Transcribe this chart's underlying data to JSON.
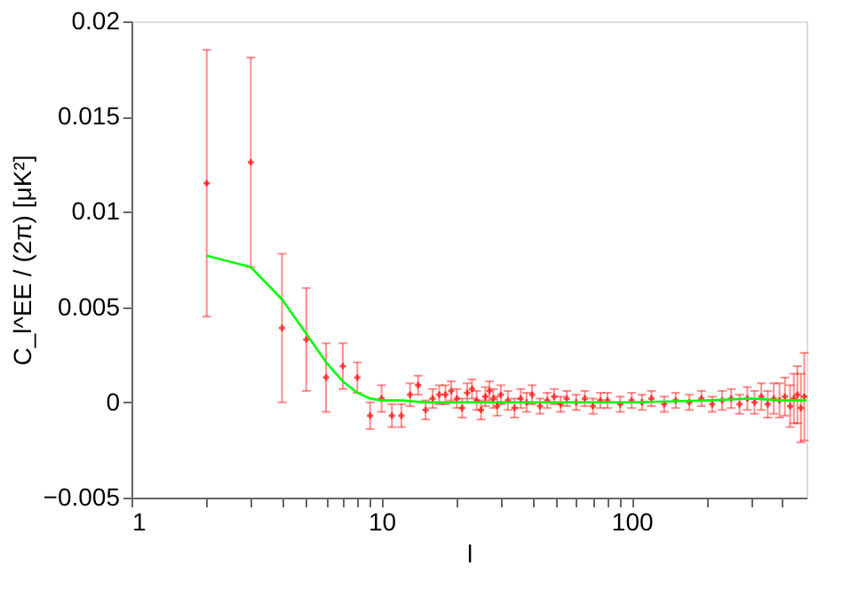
{
  "chart_data": {
    "type": "scatter",
    "xlabel": "l",
    "ylabel": "C_l^EE / (2π)  [μK²]",
    "log": "x",
    "grid": false,
    "xlim": [
      1,
      500
    ],
    "xticks": [
      1,
      {
        "value": 2,
        "label": null
      },
      {
        "value": 3,
        "label": null
      },
      {
        "value": 4,
        "label": null
      },
      {
        "value": 5,
        "label": null
      },
      {
        "value": 6,
        "label": null
      },
      {
        "value": 7,
        "label": null
      },
      {
        "value": 8,
        "label": null
      },
      {
        "value": 9,
        "label": null
      },
      10,
      {
        "value": 20,
        "label": null
      },
      {
        "value": 30,
        "label": null
      },
      {
        "value": 40,
        "label": null
      },
      {
        "value": 50,
        "label": null
      },
      {
        "value": 60,
        "label": null
      },
      {
        "value": 70,
        "label": null
      },
      {
        "value": 80,
        "label": null
      },
      {
        "value": 90,
        "label": null
      },
      100,
      {
        "value": 200,
        "label": null
      },
      {
        "value": 300,
        "label": null
      },
      {
        "value": 400,
        "label": null
      }
    ],
    "ylim": [
      -0.005,
      0.02
    ],
    "yticks": [
      -0.005,
      0,
      0.005,
      0.01,
      0.015,
      0.02
    ],
    "series": [
      {
        "marker": "cross",
        "color": "#ff0000",
        "x": [
          2,
          3,
          4,
          5,
          6,
          7,
          8,
          9,
          10,
          11,
          12,
          13,
          14,
          15,
          16,
          17,
          18,
          19,
          20,
          21,
          22,
          23,
          24,
          25,
          26,
          27,
          28,
          29,
          30,
          32,
          34,
          36,
          38,
          40,
          43,
          46,
          49,
          52,
          55,
          60,
          65,
          70,
          75,
          80,
          90,
          100,
          110,
          120,
          135,
          150,
          170,
          190,
          210,
          230,
          250,
          270,
          290,
          310,
          330,
          350,
          370,
          390,
          410,
          430,
          445,
          460,
          475,
          490
        ],
        "values": [
          0.0115,
          0.0126,
          0.0039,
          0.0033,
          0.0013,
          0.0019,
          0.0013,
          -0.0007,
          0.0002,
          -0.0007,
          -0.0007,
          0.0004,
          0.0009,
          -0.0004,
          0.0002,
          0.0004,
          0.0004,
          0.0006,
          0.0002,
          -0.0003,
          0.0005,
          0.0007,
          0.0001,
          -0.0004,
          0.0003,
          0.0006,
          0.0002,
          -0.0002,
          0.0004,
          0.0001,
          -0.0003,
          0.0002,
          0.0,
          0.0004,
          -0.0002,
          0.0001,
          0.0003,
          -0.0001,
          0.0002,
          0.0,
          0.0002,
          -0.0002,
          0.0001,
          0.0001,
          -0.0001,
          0.0001,
          0.0,
          0.0002,
          -0.0001,
          0.0001,
          0.0,
          0.0002,
          -0.0001,
          0.0001,
          0.0002,
          -0.0001,
          0.0002,
          0.0,
          0.0003,
          -0.0001,
          0.0002,
          0.0001,
          0.0003,
          -0.0002,
          0.0002,
          0.0004,
          -0.0003,
          0.0003
        ],
        "errors": [
          0.007,
          0.0055,
          0.0039,
          0.0027,
          0.0018,
          0.0012,
          0.0008,
          0.0007,
          0.0007,
          0.0006,
          0.0006,
          0.0006,
          0.0005,
          0.0005,
          0.0005,
          0.0005,
          0.0005,
          0.0005,
          0.0005,
          0.0005,
          0.0005,
          0.0005,
          0.0005,
          0.0005,
          0.0005,
          0.0005,
          0.0005,
          0.0005,
          0.0005,
          0.0005,
          0.0005,
          0.0005,
          0.0005,
          0.0005,
          0.0004,
          0.0004,
          0.0004,
          0.0004,
          0.0004,
          0.0004,
          0.0004,
          0.0004,
          0.0004,
          0.0004,
          0.0004,
          0.0004,
          0.0004,
          0.0004,
          0.0004,
          0.0004,
          0.0004,
          0.0004,
          0.0004,
          0.0005,
          0.0005,
          0.0005,
          0.0006,
          0.0006,
          0.0007,
          0.0007,
          0.0008,
          0.0009,
          0.001,
          0.0011,
          0.0013,
          0.0015,
          0.0018,
          0.0023
        ]
      },
      {
        "type": "line",
        "color": "#00ff00",
        "x": [
          2,
          3,
          4,
          5,
          6,
          7,
          8,
          9,
          10,
          12,
          15,
          20,
          30,
          50,
          100,
          200,
          300,
          400,
          500
        ],
        "values": [
          0.0077,
          0.0071,
          0.0054,
          0.0036,
          0.0021,
          0.0011,
          0.0005,
          0.0002,
          0.0001,
          0.0001,
          0.0,
          0.0,
          0.0,
          0.0,
          0.0,
          0.0001,
          0.0002,
          0.0001,
          0.0001
        ]
      }
    ]
  }
}
